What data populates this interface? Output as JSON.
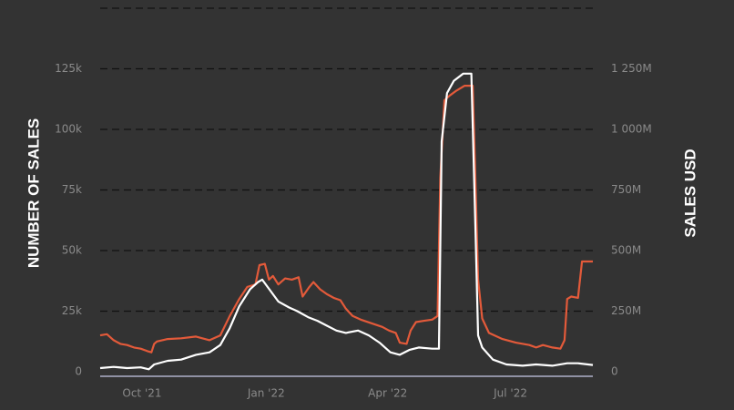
{
  "chart_data": {
    "type": "line",
    "title": "",
    "ylabel_left": "NUMBER OF SALES",
    "ylabel_right": "SALES USD",
    "xlabel": "",
    "x_ticks": [
      "Oct '21",
      "Jan '22",
      "Apr '22",
      "Jul '22"
    ],
    "y_left_ticks": [
      {
        "value": 0,
        "label": "0"
      },
      {
        "value": 25000,
        "label": "25k"
      },
      {
        "value": 50000,
        "label": "50k"
      },
      {
        "value": 75000,
        "label": "75k"
      },
      {
        "value": 100000,
        "label": "100k"
      },
      {
        "value": 125000,
        "label": "125k"
      }
    ],
    "y_right_ticks": [
      {
        "value": 0,
        "label": "0"
      },
      {
        "value": 250,
        "label": "250M"
      },
      {
        "value": 500,
        "label": "500M"
      },
      {
        "value": 750,
        "label": "750M"
      },
      {
        "value": 1000,
        "label": "1 000M"
      },
      {
        "value": 1250,
        "label": "1 250M"
      }
    ],
    "ylim_left": [
      0,
      150000
    ],
    "ylim_right": [
      0,
      1500
    ],
    "grid": true,
    "x_range": [
      "2021-08-31",
      "2022-08-31"
    ],
    "series": [
      {
        "axis": "right",
        "unit": "M USD",
        "color": "#e35a3a",
        "points": [
          [
            "2021-08-31",
            150
          ],
          [
            "2021-09-05",
            155
          ],
          [
            "2021-09-10",
            130
          ],
          [
            "2021-09-15",
            115
          ],
          [
            "2021-09-20",
            110
          ],
          [
            "2021-09-25",
            100
          ],
          [
            "2021-09-30",
            95
          ],
          [
            "2021-10-05",
            85
          ],
          [
            "2021-10-08",
            80
          ],
          [
            "2021-10-10",
            115
          ],
          [
            "2021-10-12",
            125
          ],
          [
            "2021-10-20",
            135
          ],
          [
            "2021-10-30",
            138
          ],
          [
            "2021-11-10",
            145
          ],
          [
            "2021-11-20",
            130
          ],
          [
            "2021-11-28",
            150
          ],
          [
            "2021-12-05",
            230
          ],
          [
            "2021-12-12",
            300
          ],
          [
            "2021-12-18",
            350
          ],
          [
            "2021-12-24",
            360
          ],
          [
            "2021-12-27",
            440
          ],
          [
            "2021-12-31",
            445
          ],
          [
            "2022-01-03",
            380
          ],
          [
            "2022-01-06",
            395
          ],
          [
            "2022-01-10",
            360
          ],
          [
            "2022-01-15",
            385
          ],
          [
            "2022-01-20",
            380
          ],
          [
            "2022-01-25",
            390
          ],
          [
            "2022-01-28",
            310
          ],
          [
            "2022-02-02",
            350
          ],
          [
            "2022-02-05",
            370
          ],
          [
            "2022-02-10",
            340
          ],
          [
            "2022-02-15",
            320
          ],
          [
            "2022-02-20",
            305
          ],
          [
            "2022-02-25",
            295
          ],
          [
            "2022-03-01",
            260
          ],
          [
            "2022-03-06",
            230
          ],
          [
            "2022-03-12",
            215
          ],
          [
            "2022-03-20",
            200
          ],
          [
            "2022-03-28",
            185
          ],
          [
            "2022-04-02",
            170
          ],
          [
            "2022-04-07",
            160
          ],
          [
            "2022-04-10",
            120
          ],
          [
            "2022-04-15",
            115
          ],
          [
            "2022-04-18",
            170
          ],
          [
            "2022-04-22",
            205
          ],
          [
            "2022-04-28",
            210
          ],
          [
            "2022-05-04",
            215
          ],
          [
            "2022-05-08",
            230
          ],
          [
            "2022-05-10",
            800
          ],
          [
            "2022-05-13",
            1120
          ],
          [
            "2022-05-17",
            1140
          ],
          [
            "2022-05-22",
            1160
          ],
          [
            "2022-05-28",
            1180
          ],
          [
            "2022-06-03",
            1180
          ],
          [
            "2022-06-05",
            800
          ],
          [
            "2022-06-07",
            380
          ],
          [
            "2022-06-10",
            220
          ],
          [
            "2022-06-15",
            160
          ],
          [
            "2022-06-25",
            135
          ],
          [
            "2022-07-05",
            120
          ],
          [
            "2022-07-15",
            110
          ],
          [
            "2022-07-20",
            100
          ],
          [
            "2022-07-25",
            110
          ],
          [
            "2022-08-01",
            100
          ],
          [
            "2022-08-07",
            95
          ],
          [
            "2022-08-10",
            130
          ],
          [
            "2022-08-12",
            300
          ],
          [
            "2022-08-15",
            310
          ],
          [
            "2022-08-20",
            305
          ],
          [
            "2022-08-23",
            455
          ],
          [
            "2022-08-31",
            455
          ]
        ]
      },
      {
        "axis": "left",
        "unit": "sales",
        "color": "#ffffff",
        "points": [
          [
            "2021-08-31",
            1500
          ],
          [
            "2021-09-10",
            2000
          ],
          [
            "2021-09-20",
            1500
          ],
          [
            "2021-09-30",
            1800
          ],
          [
            "2021-10-06",
            1000
          ],
          [
            "2021-10-10",
            3000
          ],
          [
            "2021-10-20",
            4500
          ],
          [
            "2021-10-30",
            5000
          ],
          [
            "2021-11-10",
            7000
          ],
          [
            "2021-11-20",
            8000
          ],
          [
            "2021-11-28",
            11000
          ],
          [
            "2021-12-05",
            18000
          ],
          [
            "2021-12-12",
            27000
          ],
          [
            "2021-12-20",
            34000
          ],
          [
            "2021-12-26",
            37000
          ],
          [
            "2021-12-29",
            38000
          ],
          [
            "2022-01-02",
            35000
          ],
          [
            "2022-01-06",
            32000
          ],
          [
            "2022-01-10",
            29000
          ],
          [
            "2022-01-18",
            26500
          ],
          [
            "2022-01-24",
            25000
          ],
          [
            "2022-02-01",
            22500
          ],
          [
            "2022-02-08",
            21000
          ],
          [
            "2022-02-15",
            19000
          ],
          [
            "2022-02-22",
            17000
          ],
          [
            "2022-03-01",
            16000
          ],
          [
            "2022-03-10",
            17000
          ],
          [
            "2022-03-18",
            15000
          ],
          [
            "2022-03-26",
            12000
          ],
          [
            "2022-04-03",
            8000
          ],
          [
            "2022-04-10",
            7000
          ],
          [
            "2022-04-17",
            9000
          ],
          [
            "2022-04-24",
            10000
          ],
          [
            "2022-05-04",
            9500
          ],
          [
            "2022-05-09",
            9500
          ],
          [
            "2022-05-11",
            95000
          ],
          [
            "2022-05-15",
            115000
          ],
          [
            "2022-05-20",
            120000
          ],
          [
            "2022-05-27",
            123000
          ],
          [
            "2022-06-02",
            123000
          ],
          [
            "2022-06-05",
            60000
          ],
          [
            "2022-06-07",
            15000
          ],
          [
            "2022-06-10",
            10000
          ],
          [
            "2022-06-18",
            5000
          ],
          [
            "2022-06-28",
            3000
          ],
          [
            "2022-07-10",
            2500
          ],
          [
            "2022-07-20",
            3000
          ],
          [
            "2022-08-01",
            2500
          ],
          [
            "2022-08-12",
            3500
          ],
          [
            "2022-08-20",
            3500
          ],
          [
            "2022-08-31",
            2800
          ]
        ]
      }
    ]
  }
}
